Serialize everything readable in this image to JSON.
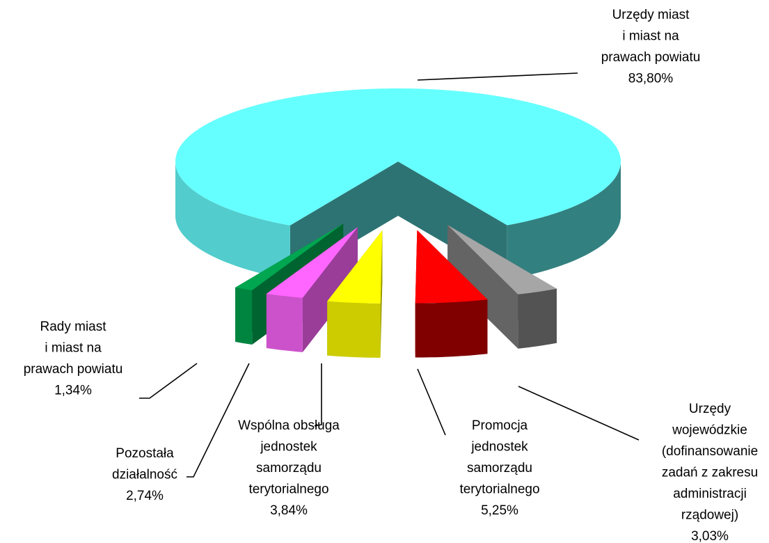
{
  "chart_data": {
    "type": "pie3d",
    "categories": [
      "Urzędy miast\ni miast na\nprawach powiatu",
      "Urzędy\nwojewódzkie\n(dofinansowanie\nzadań z zakresu\nadministracji\nrządowej)",
      "Promocja\njednostek\nsamorządu\nterytorialnego",
      "Wspólna obsługa\njednostek\nsamorządu\nterytorialnego",
      "Pozostała\ndziałalność",
      "Rady miast\ni miast na\nprawach powiatu"
    ],
    "values": [
      83.8,
      3.03,
      5.25,
      3.84,
      2.74,
      1.34
    ],
    "value_labels": [
      "83,80%",
      "3,03%",
      "5,25%",
      "3,84%",
      "2,74%",
      "1,34%"
    ],
    "colors": [
      "#66ffff",
      "#a6a6a6",
      "#ff0000",
      "#ffff00",
      "#ff66ff",
      "#00a650"
    ]
  }
}
